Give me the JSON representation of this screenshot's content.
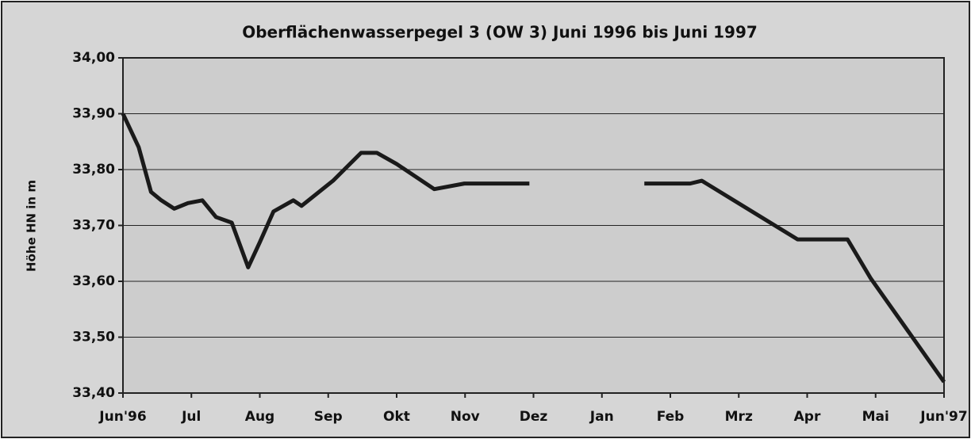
{
  "chart_data": {
    "type": "line",
    "title": "Oberflächenwasserpegel 3 (OW 3) Juni 1996 bis Juni 1997",
    "y_label": "Höhe HN in m",
    "x": [
      0,
      0.23,
      0.41,
      0.56,
      0.75,
      0.95,
      1.16,
      1.36,
      1.59,
      1.83,
      2.0,
      2.2,
      2.49,
      2.61,
      3.07,
      3.48,
      3.71,
      4.0,
      4.55,
      4.99,
      5.94,
      7.0,
      7.62,
      8.29,
      8.46,
      9.86,
      10.59,
      10.93,
      12
    ],
    "series": [
      {
        "name": "OW 3",
        "color": "#1a1a1a",
        "values": [
          33.9,
          33.84,
          33.76,
          33.745,
          33.73,
          33.74,
          33.745,
          33.715,
          33.705,
          33.625,
          33.67,
          33.725,
          33.745,
          33.735,
          33.78,
          33.83,
          33.83,
          33.81,
          33.765,
          33.775,
          33.775,
          null,
          33.775,
          33.775,
          33.78,
          33.675,
          33.675,
          33.605,
          33.42
        ]
      }
    ],
    "xlim": [
      0,
      12
    ],
    "xticks": [
      {
        "value": 0,
        "label": "Jun'96"
      },
      {
        "value": 1,
        "label": "Jul"
      },
      {
        "value": 2,
        "label": "Aug"
      },
      {
        "value": 3,
        "label": "Sep"
      },
      {
        "value": 4,
        "label": "Okt"
      },
      {
        "value": 5,
        "label": "Nov"
      },
      {
        "value": 6,
        "label": "Dez"
      },
      {
        "value": 7,
        "label": "Jan"
      },
      {
        "value": 8,
        "label": "Feb"
      },
      {
        "value": 9,
        "label": "Mrz"
      },
      {
        "value": 10,
        "label": "Apr"
      },
      {
        "value": 11,
        "label": "Mai"
      },
      {
        "value": 12,
        "label": "Jun'97"
      }
    ],
    "ylim": [
      33.4,
      34.0
    ],
    "yticks": [
      {
        "value": 33.4,
        "label": "33,40"
      },
      {
        "value": 33.5,
        "label": "33,50"
      },
      {
        "value": 33.6,
        "label": "33,60"
      },
      {
        "value": 33.7,
        "label": "33,70"
      },
      {
        "value": 33.8,
        "label": "33,80"
      },
      {
        "value": 33.9,
        "label": "33,90"
      },
      {
        "value": 34.0,
        "label": "34,00"
      }
    ],
    "grid": true
  }
}
